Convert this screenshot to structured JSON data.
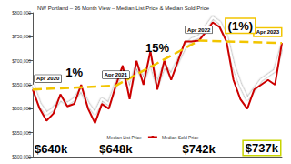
{
  "chart_data": {
    "type": "line",
    "title": "NW Portland – 36 Month View – Median List Price & Median Sold Price",
    "categories": [
      null,
      null,
      null,
      null,
      null,
      null,
      null,
      null,
      null,
      null,
      null,
      null,
      null,
      null,
      null,
      null,
      null,
      null,
      null,
      null,
      null,
      null,
      null,
      null,
      null,
      null,
      null,
      null,
      null,
      null,
      null,
      null,
      null,
      null,
      null,
      null,
      null
    ],
    "series": [
      {
        "name": "Median List Price",
        "color": "#ffffff",
        "values": [
          650000,
          610000,
          590000,
          600000,
          620000,
          610000,
          620000,
          640000,
          610000,
          590000,
          620000,
          610000,
          650000,
          680000,
          640000,
          690000,
          660000,
          700000,
          650000,
          690000,
          670000,
          700000,
          730000,
          745000,
          750000,
          770000,
          790000,
          780000,
          750000,
          690000,
          650000,
          620000,
          640000,
          660000,
          670000,
          680000,
          730000
        ]
      },
      {
        "name": "Median Sold Price",
        "color": "#cc0000",
        "values": [
          640000,
          600000,
          575000,
          590000,
          630000,
          605000,
          610000,
          650000,
          600000,
          570000,
          610000,
          600000,
          648000,
          690000,
          620000,
          700000,
          650000,
          720000,
          640000,
          700000,
          660000,
          700000,
          740000,
          740000,
          742000,
          760000,
          780000,
          770000,
          740000,
          660000,
          620000,
          600000,
          640000,
          650000,
          660000,
          650000,
          737000
        ]
      }
    ],
    "trend": {
      "color": "#f2c500",
      "line_style": "dashed",
      "values": [
        640000,
        null,
        null,
        null,
        null,
        null,
        null,
        null,
        null,
        null,
        null,
        null,
        648000,
        null,
        null,
        null,
        null,
        null,
        null,
        null,
        null,
        null,
        null,
        null,
        742000,
        null,
        null,
        null,
        null,
        null,
        null,
        null,
        null,
        null,
        null,
        null,
        737000
      ]
    },
    "milestones": [
      {
        "index": 0,
        "date": "Apr 2020",
        "price_label": "$640k",
        "value": 640000
      },
      {
        "index": 12,
        "date": "Apr 2021",
        "price_label": "$648k",
        "value": 648000
      },
      {
        "index": 24,
        "date": "Apr 2022",
        "price_label": "$742k",
        "value": 742000
      },
      {
        "index": 36,
        "date": "Apr 2023",
        "price_label": "$737k",
        "value": 737000,
        "highlight": true
      }
    ],
    "changes": [
      {
        "label": "1%"
      },
      {
        "label": "15%"
      },
      {
        "label": "(1%)",
        "highlight": true
      }
    ],
    "ylim": [
      500000,
      800000
    ],
    "yticks": [
      {
        "value": 500000,
        "label": "$500,000"
      },
      {
        "value": 550000,
        "label": "$550,000"
      },
      {
        "value": 600000,
        "label": "$600,000"
      },
      {
        "value": 650000,
        "label": "$650,000"
      },
      {
        "value": 700000,
        "label": "$700,000"
      },
      {
        "value": 750000,
        "label": "$750,000"
      },
      {
        "value": 800000,
        "label": "$800,000"
      }
    ],
    "grid": false,
    "legend": "bottom"
  }
}
